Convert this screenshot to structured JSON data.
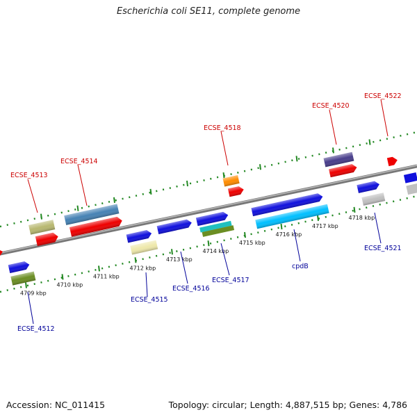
{
  "title": "Escherichia coli SE11, complete genome",
  "footer": {
    "accession": "Accession: NC_011415",
    "summary": "Topology: circular; Length: 4,887,515 bp; Genes: 4,786"
  },
  "colors": {
    "backbone": "#888888",
    "tick": "#228822",
    "label_upper": "#cc0000",
    "label_lower": "#000099"
  },
  "ticks": [
    {
      "label": "4709 kbp",
      "kbp": 4709
    },
    {
      "label": "4710 kbp",
      "kbp": 4710
    },
    {
      "label": "4711 kbp",
      "kbp": 4711
    },
    {
      "label": "4712 kbp",
      "kbp": 4712
    },
    {
      "label": "4713 kbp",
      "kbp": 4713
    },
    {
      "label": "4714 kbp",
      "kbp": 4714
    },
    {
      "label": "4715 kbp",
      "kbp": 4715
    },
    {
      "label": "4716 kbp",
      "kbp": 4716
    },
    {
      "label": "4717 kbp",
      "kbp": 4717
    },
    {
      "label": "4718 kbp",
      "kbp": 4718
    }
  ],
  "gene_labels_upper": [
    "ECSE_4513",
    "ECSE_4514",
    "ECSE_4518",
    "ECSE_4520",
    "ECSE_4522"
  ],
  "gene_labels_lower": [
    "ECSE_4512",
    "ECSE_4515",
    "ECSE_4516",
    "ECSE_4517",
    "cpdB",
    "ECSE_4521"
  ]
}
